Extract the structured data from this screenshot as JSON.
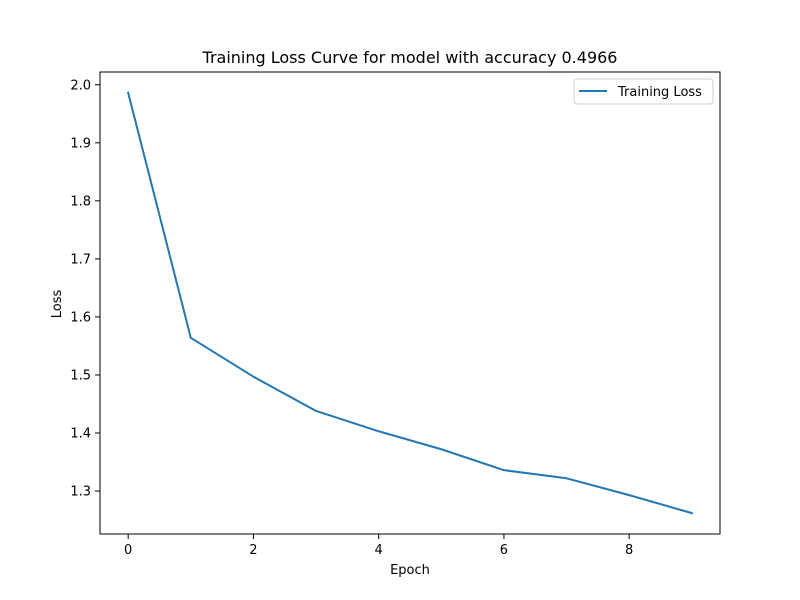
{
  "chart_data": {
    "type": "line",
    "title": "Training Loss Curve for model with accuracy 0.4966",
    "xlabel": "Epoch",
    "ylabel": "Loss",
    "x": [
      0,
      1,
      2,
      3,
      4,
      5,
      6,
      7,
      8,
      9
    ],
    "series": [
      {
        "name": "Training Loss",
        "color": "#1f77b4",
        "values": [
          1.986,
          1.564,
          1.497,
          1.438,
          1.403,
          1.372,
          1.336,
          1.322,
          1.293,
          1.262
        ]
      }
    ],
    "xlim": [
      -0.45,
      9.45
    ],
    "ylim": [
      1.226,
      2.022
    ],
    "xticks": [
      0,
      2,
      4,
      6,
      8
    ],
    "xtick_labels": [
      "0",
      "2",
      "4",
      "6",
      "8"
    ],
    "yticks": [
      1.3,
      1.4,
      1.5,
      1.6,
      1.7,
      1.8,
      1.9,
      2.0
    ],
    "ytick_labels": [
      "1.3",
      "1.4",
      "1.5",
      "1.6",
      "1.7",
      "1.8",
      "1.9",
      "2.0"
    ],
    "grid": false,
    "legend_position": "top-right"
  }
}
